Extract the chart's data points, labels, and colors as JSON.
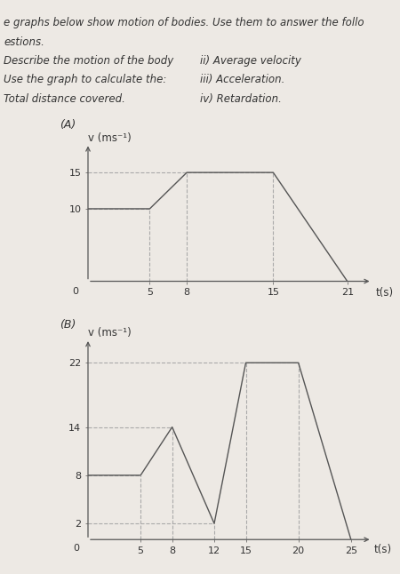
{
  "graph_A_label": "(A)",
  "graph_A_ylabel": "v (ms⁻¹)",
  "graph_A_xlabel": "t(s)",
  "graph_A_x": [
    0,
    5,
    8,
    15,
    21
  ],
  "graph_A_y": [
    10,
    10,
    15,
    15,
    0
  ],
  "graph_A_yticks": [
    10,
    15
  ],
  "graph_A_ytick_labels": [
    "10",
    "15"
  ],
  "graph_A_xticks": [
    5,
    8,
    15,
    21
  ],
  "graph_A_xtick_labels": [
    "5",
    "8",
    "15",
    "21"
  ],
  "graph_A_xlim": [
    0,
    23
  ],
  "graph_A_ylim": [
    0,
    19
  ],
  "graph_A_dashed_vlines": [
    [
      5,
      0,
      10
    ],
    [
      8,
      0,
      15
    ],
    [
      15,
      0,
      15
    ]
  ],
  "graph_A_dashed_hlines": [
    [
      10,
      0,
      5
    ],
    [
      15,
      0,
      15
    ]
  ],
  "graph_B_label": "(B)",
  "graph_B_ylabel": "v (ms⁻¹)",
  "graph_B_xlabel": "t(s)",
  "graph_B_x": [
    0,
    5,
    8,
    12,
    15,
    20,
    25
  ],
  "graph_B_y": [
    8,
    8,
    14,
    2,
    22,
    22,
    0
  ],
  "graph_B_yticks": [
    2,
    8,
    14,
    22
  ],
  "graph_B_ytick_labels": [
    "2",
    "8",
    "14",
    "22"
  ],
  "graph_B_xticks": [
    5,
    8,
    12,
    15,
    20,
    25
  ],
  "graph_B_xtick_labels": [
    "5",
    "8",
    "12",
    "15",
    "20",
    "25"
  ],
  "graph_B_xlim": [
    0,
    27
  ],
  "graph_B_ylim": [
    0,
    25
  ],
  "graph_B_dashed_vlines": [
    [
      5,
      0,
      8
    ],
    [
      8,
      0,
      14
    ],
    [
      12,
      0,
      2
    ],
    [
      15,
      0,
      22
    ],
    [
      20,
      0,
      22
    ]
  ],
  "graph_B_dashed_hlines": [
    [
      8,
      0,
      5
    ],
    [
      14,
      0,
      8
    ],
    [
      2,
      0,
      12
    ],
    [
      22,
      0,
      20
    ]
  ],
  "line_color": "#555555",
  "dashed_color": "#aaaaaa",
  "bg_color": "#ede9e4",
  "text_color": "#333333",
  "header_lines": [
    [
      "e graphs below show motion of bodies. Use them to answer the follo",
      ""
    ],
    [
      "estions.",
      ""
    ],
    [
      "Describe the motion of the body",
      "ii) Average velocity"
    ],
    [
      "Use the graph to calculate the:",
      "iii) Acceleration."
    ],
    [
      "Total distance covered.",
      "iv) Retardation."
    ]
  ],
  "font_size_header": 8.5,
  "font_size_tick": 8,
  "font_size_axis_label": 8.5,
  "font_size_graph_label": 9
}
